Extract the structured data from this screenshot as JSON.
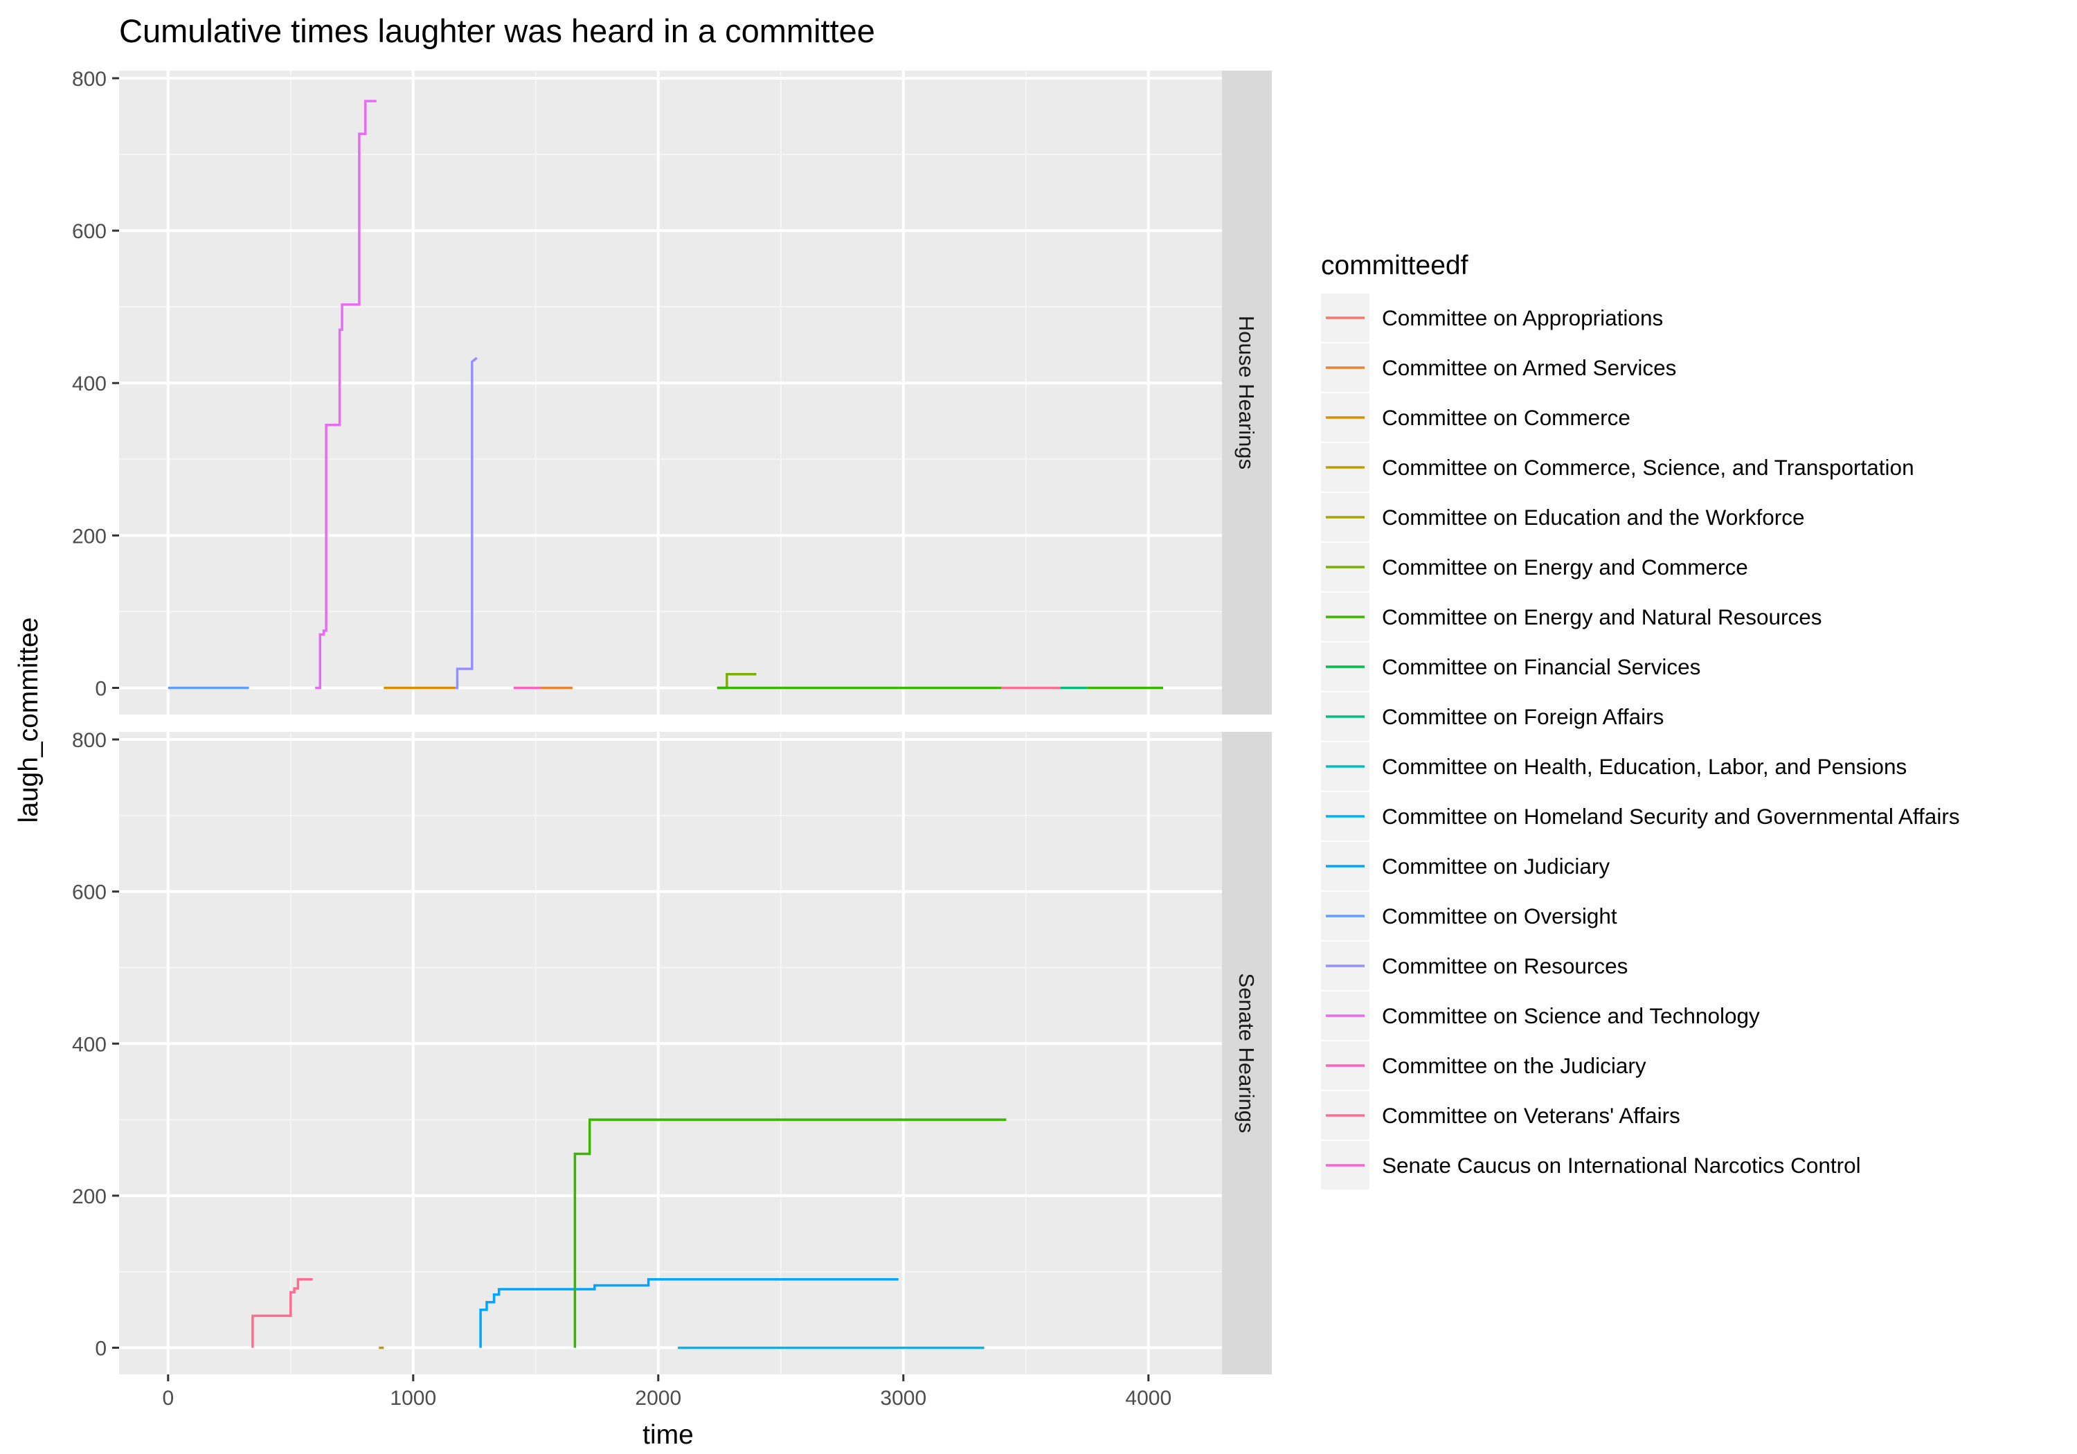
{
  "chart_data": {
    "type": "line",
    "title": "Cumulative times laughter was heard in a committee",
    "xlabel": "time",
    "ylabel": "laugh_committee",
    "xlim": [
      -200,
      4300
    ],
    "ylim": [
      -35,
      810
    ],
    "x_ticks": [
      0,
      1000,
      2000,
      3000,
      4000
    ],
    "x_tick_labels": [
      "0",
      "1000",
      "2000",
      "3000",
      "4000"
    ],
    "y_ticks": [
      0,
      200,
      400,
      600,
      800
    ],
    "y_tick_labels": [
      "0",
      "200",
      "400",
      "600",
      "800"
    ],
    "grid": true,
    "step": true,
    "facets": [
      "House Hearings",
      "Senate Hearings"
    ],
    "legend": {
      "title": "committeedf",
      "placement": "right",
      "entries": [
        {
          "name": "Committee on Appropriations",
          "color": "#F8766D"
        },
        {
          "name": "Committee on Armed Services",
          "color": "#EA8331"
        },
        {
          "name": "Committee on Commerce",
          "color": "#D89000"
        },
        {
          "name": "Committee on Commerce, Science, and Transportation",
          "color": "#C09B00"
        },
        {
          "name": "Committee on Education and the Workforce",
          "color": "#A3A500"
        },
        {
          "name": "Committee on Energy and Commerce",
          "color": "#7CAE00"
        },
        {
          "name": "Committee on Energy and Natural Resources",
          "color": "#39B600"
        },
        {
          "name": "Committee on Financial Services",
          "color": "#00BB4E"
        },
        {
          "name": "Committee on Foreign Affairs",
          "color": "#00BF7D"
        },
        {
          "name": "Committee on Health, Education, Labor, and Pensions",
          "color": "#00BFC4"
        },
        {
          "name": "Committee on Homeland Security and Governmental Affairs",
          "color": "#00B4F0"
        },
        {
          "name": "Committee on Judiciary",
          "color": "#00A5FF"
        },
        {
          "name": "Committee on Oversight",
          "color": "#619CFF"
        },
        {
          "name": "Committee on Resources",
          "color": "#9590FF"
        },
        {
          "name": "Committee on Science and Technology",
          "color": "#E76BF3"
        },
        {
          "name": "Committee on the Judiciary",
          "color": "#FF62BC"
        },
        {
          "name": "Committee on Veterans' Affairs",
          "color": "#FF6C91"
        },
        {
          "name": "Senate Caucus on International Narcotics Control",
          "color": "#FB61D7"
        }
      ]
    },
    "series": [
      {
        "facet": 0,
        "color": "#619CFF",
        "x": [
          0,
          330
        ],
        "y": [
          0,
          0
        ]
      },
      {
        "facet": 0,
        "color": "#E76BF3",
        "x": [
          600,
          620,
          620,
          635,
          635,
          645,
          645,
          700,
          700,
          710,
          710,
          780,
          780,
          805,
          805,
          850
        ],
        "y": [
          0,
          0,
          70,
          70,
          75,
          75,
          345,
          345,
          470,
          470,
          503,
          503,
          727,
          727,
          770,
          770
        ]
      },
      {
        "facet": 0,
        "color": "#D89000",
        "x": [
          880,
          1170
        ],
        "y": [
          0,
          0
        ]
      },
      {
        "facet": 0,
        "color": "#9590FF",
        "x": [
          1170,
          1180,
          1180,
          1240,
          1240,
          1260
        ],
        "y": [
          0,
          0,
          25,
          25,
          428,
          433
        ]
      },
      {
        "facet": 0,
        "color": "#FF62BC",
        "x": [
          1410,
          1520
        ],
        "y": [
          0,
          0
        ]
      },
      {
        "facet": 0,
        "color": "#EA8331",
        "x": [
          1520,
          1650
        ],
        "y": [
          0,
          0
        ]
      },
      {
        "facet": 0,
        "color": "#7CAE00",
        "x": [
          2240,
          2280,
          2280,
          2400
        ],
        "y": [
          0,
          0,
          18,
          18
        ]
      },
      {
        "facet": 0,
        "color": "#39B600",
        "x": [
          2240,
          3400
        ],
        "y": [
          0,
          0
        ]
      },
      {
        "facet": 0,
        "color": "#FF6C91",
        "x": [
          3400,
          3640
        ],
        "y": [
          0,
          0
        ]
      },
      {
        "facet": 0,
        "color": "#00BF7D",
        "x": [
          3640,
          3750
        ],
        "y": [
          0,
          0
        ]
      },
      {
        "facet": 0,
        "color": "#39B600",
        "x": [
          3750,
          4060
        ],
        "y": [
          0,
          0
        ]
      },
      {
        "facet": 1,
        "color": "#FF6C91",
        "x": [
          345,
          345,
          500,
          500,
          515,
          515,
          530,
          530,
          590
        ],
        "y": [
          0,
          42,
          42,
          73,
          73,
          78,
          78,
          90,
          90
        ]
      },
      {
        "facet": 1,
        "color": "#C09B00",
        "x": [
          860,
          880
        ],
        "y": [
          0,
          0
        ]
      },
      {
        "facet": 1,
        "color": "#00A5FF",
        "x": [
          1275,
          1275,
          1300,
          1300,
          1330,
          1330,
          1350,
          1350,
          1740,
          1740,
          1960,
          1960,
          2980
        ],
        "y": [
          0,
          50,
          50,
          60,
          60,
          70,
          70,
          77,
          77,
          82,
          82,
          90,
          90
        ]
      },
      {
        "facet": 1,
        "color": "#39B600",
        "x": [
          1660,
          1660,
          1720,
          1720,
          3420
        ],
        "y": [
          0,
          255,
          255,
          300,
          300
        ]
      },
      {
        "facet": 1,
        "color": "#00B4F0",
        "x": [
          2080,
          3330
        ],
        "y": [
          0,
          0
        ]
      }
    ]
  }
}
